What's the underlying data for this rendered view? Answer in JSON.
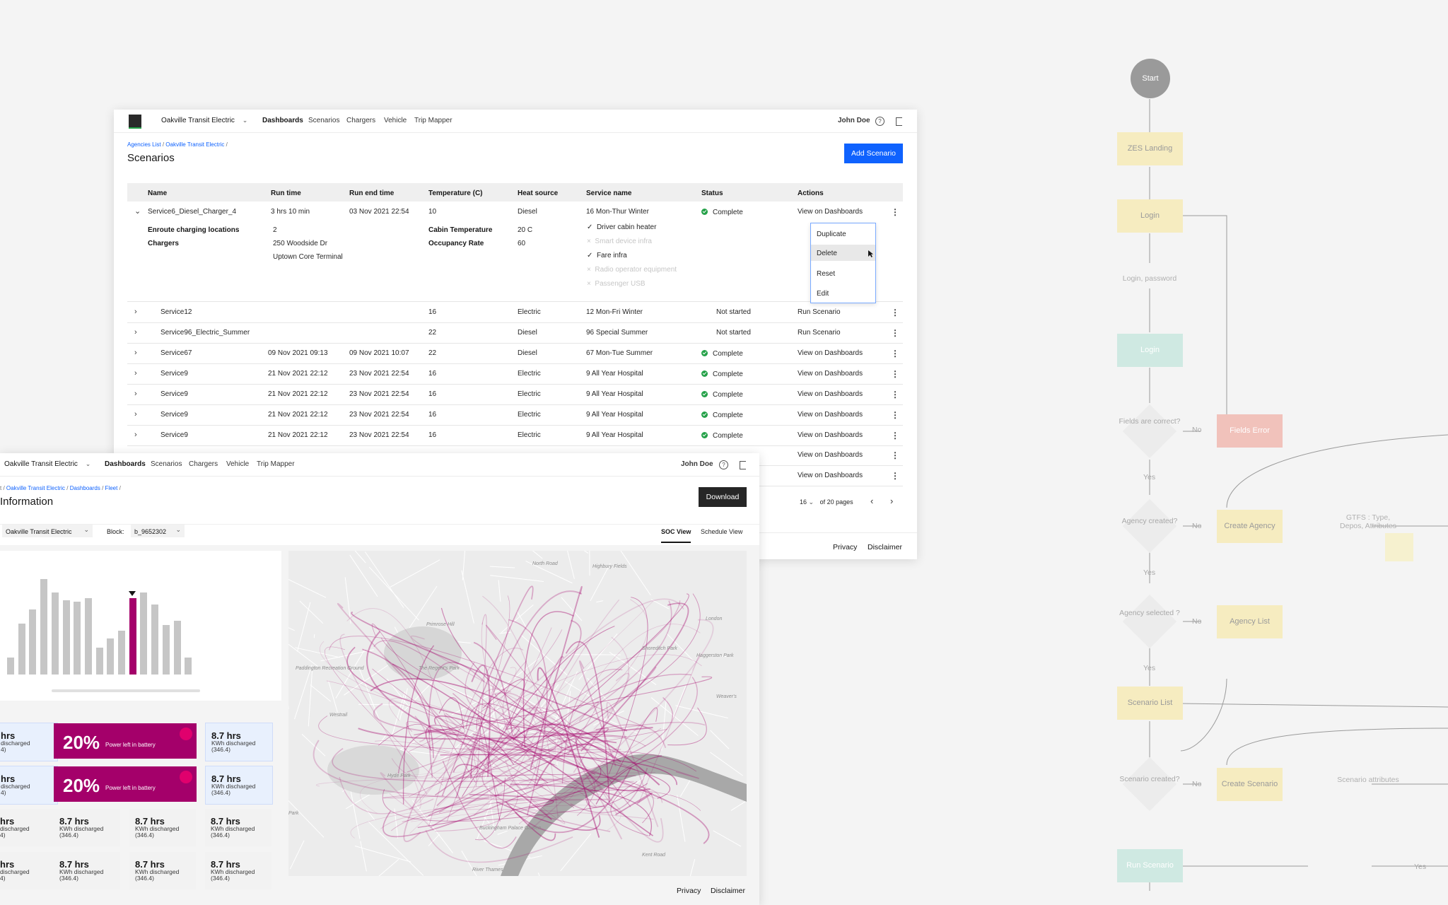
{
  "scenarios_window": {
    "nav": {
      "agency": "Oakville Transit Electric",
      "links": [
        "Dashboards",
        "Scenarios",
        "Chargers",
        "Vehicle",
        "Trip Mapper"
      ],
      "user": "John Doe"
    },
    "breadcrumb": [
      "Agencies List",
      "Oakville Transit Electric"
    ],
    "title": "Scenarios",
    "add_button": "Add Scenario",
    "columns": [
      "Name",
      "Run time",
      "Run end time",
      "Temperature (C)",
      "Heat source",
      "Service name",
      "Status",
      "Actions"
    ],
    "expanded_row": {
      "name": "Service6_Diesel_Charger_4",
      "run_time": "3 hrs 10 min",
      "run_end": "03 Nov 2021 22:54",
      "temperature": "10",
      "heat_source": "Diesel",
      "service": "16 Mon-Thur Winter",
      "status": "Complete",
      "action": "View on Dashboards",
      "details": {
        "label_enroute": "Enroute charging locations",
        "label_chargers": "Chargers",
        "enroute_value": "2",
        "chargers": [
          "250 Woodside Dr",
          "Uptown Core Terminal"
        ],
        "label_cabin": "Cabin Temperature",
        "label_occupancy": "Occupancy Rate",
        "cabin_value": "20 C",
        "occupancy_value": "60",
        "features_on": [
          "Driver cabin heater",
          "Fare infra"
        ],
        "features_off": [
          "Smart device infra",
          "Radio operator equipment",
          "Passenger USB"
        ]
      }
    },
    "context_menu": [
      "Duplicate",
      "Delete",
      "Reset",
      "Edit"
    ],
    "rows": [
      {
        "name": "Service12",
        "run_time": "",
        "run_end": "",
        "temp": "16",
        "heat": "Electric",
        "service": "12 Mon-Fri Winter",
        "status": "Not started",
        "action": "Run Scenario"
      },
      {
        "name": "Service96_Electric_Summer",
        "run_time": "",
        "run_end": "",
        "temp": "22",
        "heat": "Diesel",
        "service": "96 Special Summer",
        "status": "Not started",
        "action": "Run Scenario"
      },
      {
        "name": "Service67",
        "run_time": "09 Nov 2021 09:13",
        "run_end": "09 Nov 2021 10:07",
        "temp": "22",
        "heat": "Diesel",
        "service": "67 Mon-Tue Summer",
        "status": "Complete",
        "action": "View on Dashboards"
      },
      {
        "name": "Service9",
        "run_time": "21 Nov 2021 22:12",
        "run_end": "23 Nov 2021 22:54",
        "temp": "16",
        "heat": "Electric",
        "service": "9 All Year Hospital",
        "status": "Complete",
        "action": "View on Dashboards"
      },
      {
        "name": "Service9",
        "run_time": "21 Nov 2021 22:12",
        "run_end": "23 Nov 2021 22:54",
        "temp": "16",
        "heat": "Electric",
        "service": "9 All Year Hospital",
        "status": "Complete",
        "action": "View on Dashboards"
      },
      {
        "name": "Service9",
        "run_time": "21 Nov 2021 22:12",
        "run_end": "23 Nov 2021 22:54",
        "temp": "16",
        "heat": "Electric",
        "service": "9 All Year Hospital",
        "status": "Complete",
        "action": "View on Dashboards"
      },
      {
        "name": "Service9",
        "run_time": "21 Nov 2021 22:12",
        "run_end": "23 Nov 2021 22:54",
        "temp": "16",
        "heat": "Electric",
        "service": "9 All Year Hospital",
        "status": "Complete",
        "action": "View on Dashboards"
      }
    ],
    "hidden_rows_actions": [
      "View on Dashboards",
      "View on Dashboards"
    ],
    "pager": {
      "page": "16",
      "of": "of 20 pages"
    },
    "footer": [
      "Privacy",
      "Disclaimer"
    ]
  },
  "fleet_window": {
    "nav": {
      "agency": "Oakville Transit Electric",
      "links": [
        "Dashboards",
        "Scenarios",
        "Chargers",
        "Vehicle",
        "Trip Mapper"
      ],
      "user": "John Doe"
    },
    "breadcrumb": [
      "Oakville Transit Electric",
      "Dashboards",
      "Fleet"
    ],
    "title": "Information",
    "download": "Download",
    "filter_agency": "Oakville Transit Electric",
    "block_label": "Block:",
    "block_value": "b_9652302",
    "tabs": [
      "SOC View",
      "Schedule View"
    ],
    "bar_values": [
      18,
      53,
      68,
      100,
      86,
      78,
      76,
      80,
      28,
      38,
      46,
      80,
      86,
      73,
      52,
      56,
      18
    ],
    "selected_bar_index": 11,
    "kpi_big": {
      "pct": "20%",
      "label": "Power left in battery"
    },
    "kpi_small": {
      "hrs": "8.7 hrs",
      "sub": "KWh discharged",
      "val": "(346.4)"
    },
    "kpi_partial": {
      "hrs": "hrs",
      "sub": "discharged",
      "val": "4)"
    },
    "map_labels": [
      "North Road",
      "Highbury Fields",
      "Primrose Hill",
      "Shoreditch Park",
      "Paddington Recreation Ground",
      "The Regent's Park",
      "Haggerston Park",
      "Westrail",
      "Hyde Park",
      "Buckingham Palace Garden",
      "River Thames",
      "Kent Road",
      "London",
      "Weaver's",
      "Park"
    ],
    "footer": [
      "Privacy",
      "Disclaimer"
    ]
  },
  "flowchart": {
    "start": "Start",
    "zes_landing": "ZES Landing",
    "login": "Login",
    "login_password": "Login, password",
    "login2": "Login",
    "fields_correct": "Fields are correct?",
    "fields_error": "Fields Error",
    "agency_created": "Agency created?",
    "create_agency": "Create Agency",
    "gtfs_note": "GTFS : Type, Depos, Attributes",
    "agency_selected": "Agency selected ?",
    "agency_list": "Agency List",
    "scenario_list": "Scenario List",
    "scenario_created": "Scenario created?",
    "create_scenario": "Create Scenario",
    "scenario_attributes": "Scenario attributes",
    "run_scenario": "Run Scenario",
    "yes": "Yes",
    "no": "No"
  }
}
